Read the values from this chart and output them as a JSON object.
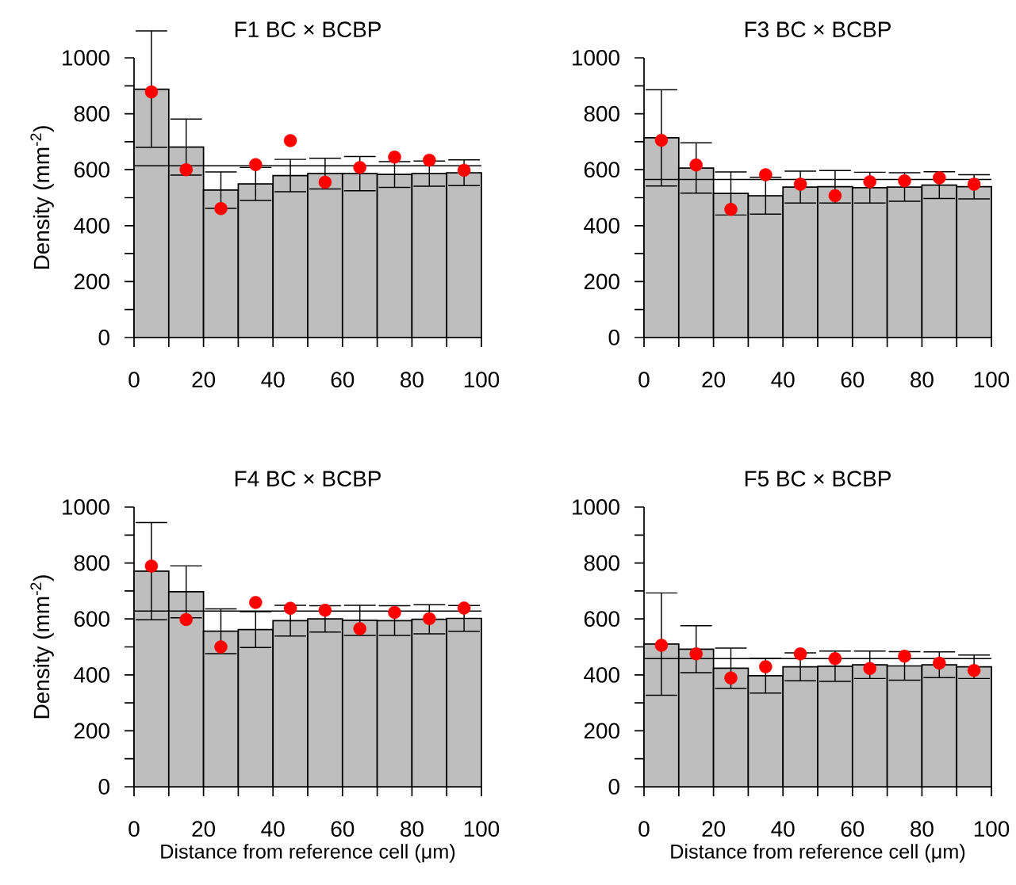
{
  "chart_data": [
    {
      "type": "histogram",
      "title": "F1 BC × BCBP",
      "ylabel": "Density (mm$^{-2}$)",
      "bins": [
        0,
        10,
        20,
        30,
        40,
        50,
        60,
        70,
        80,
        90,
        100
      ],
      "xlim": [
        0,
        100
      ],
      "ylim": [
        0,
        1000
      ],
      "xticks": [
        0,
        {
          "value": 10,
          "label": null
        },
        20,
        {
          "value": 30,
          "label": null
        },
        40,
        {
          "value": 50,
          "label": null
        },
        60,
        {
          "value": 70,
          "label": null
        },
        80,
        {
          "value": 90,
          "label": null
        },
        100
      ],
      "yticks": [
        0,
        {
          "value": 100,
          "label": null
        },
        200,
        {
          "value": 300,
          "label": null
        },
        400,
        {
          "value": 500,
          "label": null
        },
        600,
        {
          "value": 700,
          "label": null
        },
        800,
        {
          "value": 900,
          "label": null
        },
        1000
      ],
      "series": [
        {
          "color": "#bebebe",
          "values": [
            888,
            681,
            527,
            549,
            579,
            586,
            586,
            583,
            586,
            589
          ],
          "errors": [
            208,
            100,
            65,
            59,
            58,
            55,
            61,
            46,
            45,
            46
          ]
        },
        {
          "type": "scatter",
          "color": "#ff0000",
          "marker": "circle",
          "x": [
            5,
            15,
            25,
            35,
            45,
            55,
            65,
            75,
            85,
            95
          ],
          "values": [
            878,
            600,
            461,
            618,
            704,
            555,
            608,
            645,
            634,
            598
          ]
        }
      ],
      "ref_lines": [
        {
          "axis": "y",
          "value": 614,
          "color": "#000000"
        }
      ]
    },
    {
      "type": "histogram",
      "title": "F3 BC × BCBP",
      "bins": [
        0,
        10,
        20,
        30,
        40,
        50,
        60,
        70,
        80,
        90,
        100
      ],
      "xlim": [
        0,
        100
      ],
      "ylim": [
        0,
        1000
      ],
      "xticks": [
        0,
        {
          "value": 10,
          "label": null
        },
        20,
        {
          "value": 30,
          "label": null
        },
        40,
        {
          "value": 50,
          "label": null
        },
        60,
        {
          "value": 70,
          "label": null
        },
        80,
        {
          "value": 90,
          "label": null
        },
        100
      ],
      "yticks": [
        0,
        {
          "value": 100,
          "label": null
        },
        200,
        {
          "value": 300,
          "label": null
        },
        400,
        {
          "value": 500,
          "label": null
        },
        600,
        {
          "value": 700,
          "label": null
        },
        800,
        {
          "value": 900,
          "label": null
        },
        1000
      ],
      "series": [
        {
          "color": "#bebebe",
          "values": [
            714,
            606,
            515,
            507,
            538,
            539,
            536,
            538,
            545,
            539
          ],
          "errors": [
            172,
            90,
            77,
            66,
            57,
            58,
            55,
            51,
            48,
            43
          ]
        },
        {
          "type": "scatter",
          "color": "#ff0000",
          "marker": "circle",
          "x": [
            5,
            15,
            25,
            35,
            45,
            55,
            65,
            75,
            85,
            95
          ],
          "values": [
            705,
            617,
            458,
            582,
            548,
            507,
            557,
            560,
            571,
            548
          ]
        }
      ],
      "ref_lines": [
        {
          "axis": "y",
          "value": 565,
          "color": "#000000"
        }
      ]
    },
    {
      "type": "histogram",
      "title": "F4 BC × BCBP",
      "ylabel": "Density (mm$^{-2}$)",
      "xlabel": "Distance from reference cell (μm)",
      "bins": [
        0,
        10,
        20,
        30,
        40,
        50,
        60,
        70,
        80,
        90,
        100
      ],
      "xlim": [
        0,
        100
      ],
      "ylim": [
        0,
        1000
      ],
      "xticks": [
        0,
        {
          "value": 10,
          "label": null
        },
        20,
        {
          "value": 30,
          "label": null
        },
        40,
        {
          "value": 50,
          "label": null
        },
        60,
        {
          "value": 70,
          "label": null
        },
        80,
        {
          "value": 90,
          "label": null
        },
        100
      ],
      "yticks": [
        0,
        {
          "value": 100,
          "label": null
        },
        200,
        {
          "value": 300,
          "label": null
        },
        400,
        {
          "value": 500,
          "label": null
        },
        600,
        {
          "value": 700,
          "label": null
        },
        800,
        {
          "value": 900,
          "label": null
        },
        1000
      ],
      "series": [
        {
          "color": "#bebebe",
          "values": [
            771,
            697,
            556,
            562,
            594,
            600,
            595,
            594,
            599,
            602
          ],
          "errors": [
            174,
            93,
            80,
            64,
            55,
            47,
            54,
            53,
            52,
            46
          ]
        },
        {
          "type": "scatter",
          "color": "#ff0000",
          "marker": "circle",
          "x": [
            5,
            15,
            25,
            35,
            45,
            55,
            65,
            75,
            85,
            95
          ],
          "values": [
            789,
            598,
            500,
            659,
            638,
            631,
            565,
            623,
            601,
            639
          ]
        }
      ],
      "ref_lines": [
        {
          "axis": "y",
          "value": 628,
          "color": "#000000"
        }
      ]
    },
    {
      "type": "histogram",
      "title": "F5 BC × BCBP",
      "xlabel": "Distance from reference cell (μm)",
      "bins": [
        0,
        10,
        20,
        30,
        40,
        50,
        60,
        70,
        80,
        90,
        100
      ],
      "xlim": [
        0,
        100
      ],
      "ylim": [
        0,
        1000
      ],
      "xticks": [
        0,
        {
          "value": 10,
          "label": null
        },
        20,
        {
          "value": 30,
          "label": null
        },
        40,
        {
          "value": 50,
          "label": null
        },
        60,
        {
          "value": 70,
          "label": null
        },
        80,
        {
          "value": 90,
          "label": null
        },
        100
      ],
      "yticks": [
        0,
        {
          "value": 100,
          "label": null
        },
        200,
        {
          "value": 300,
          "label": null
        },
        400,
        {
          "value": 500,
          "label": null
        },
        600,
        {
          "value": 700,
          "label": null
        },
        800,
        {
          "value": 900,
          "label": null
        },
        1000
      ],
      "series": [
        {
          "color": "#bebebe",
          "values": [
            510,
            492,
            424,
            397,
            429,
            431,
            436,
            432,
            436,
            429
          ],
          "errors": [
            183,
            84,
            72,
            62,
            50,
            54,
            49,
            51,
            46,
            42
          ]
        },
        {
          "type": "scatter",
          "color": "#ff0000",
          "marker": "circle",
          "x": [
            5,
            15,
            25,
            35,
            45,
            55,
            65,
            75,
            85,
            95
          ],
          "values": [
            506,
            475,
            389,
            429,
            475,
            458,
            423,
            467,
            442,
            416
          ]
        }
      ],
      "ref_lines": [
        {
          "axis": "y",
          "value": 458,
          "color": "#000000"
        }
      ]
    }
  ]
}
